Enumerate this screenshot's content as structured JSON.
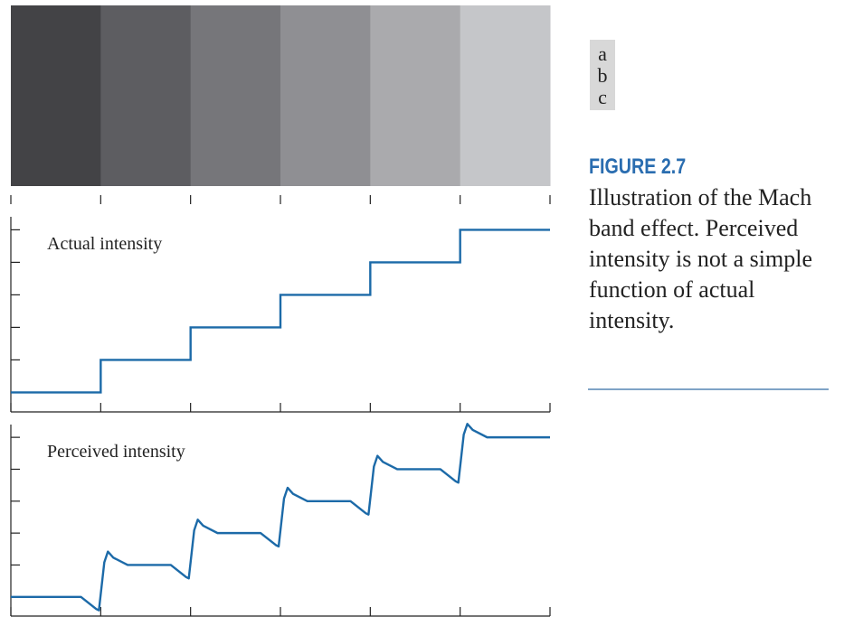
{
  "figure": {
    "panel_labels": [
      "a",
      "b",
      "c"
    ],
    "figure_number": "FIGURE 2.7",
    "caption": "Illustration of the Mach band effect. Perceived intensity is not a simple function of actual intensity."
  },
  "colors": {
    "curve": "#1c6aa8",
    "axis": "#222222",
    "caption_blue": "#2a6db0",
    "rule": "#7fa3c6",
    "bands": [
      "#434346",
      "#5d5d61",
      "#76767a",
      "#8f8f93",
      "#aaaaad",
      "#c5c6c9"
    ]
  },
  "chart_data": [
    {
      "type": "image",
      "panel": "a",
      "description_levels": [
        1,
        2,
        3,
        4,
        5,
        6
      ],
      "band_colors": [
        "#434346",
        "#5d5d61",
        "#76767a",
        "#8f8f93",
        "#aaaaad",
        "#c5c6c9"
      ]
    },
    {
      "type": "line",
      "panel": "b",
      "label": "Actual intensity",
      "x": [
        0,
        1,
        1,
        2,
        2,
        3,
        3,
        4,
        4,
        5,
        5,
        6
      ],
      "y": [
        0,
        0,
        1,
        1,
        2,
        2,
        3,
        3,
        4,
        4,
        5,
        5
      ],
      "xlim": [
        0,
        6
      ],
      "ylim": [
        -0.6,
        5.4
      ],
      "xticks": 7,
      "yticks": 6,
      "color": "#1c6aa8"
    },
    {
      "type": "line",
      "panel": "c",
      "label": "Perceived intensity",
      "steps": 6,
      "levels": [
        0,
        1,
        2,
        3,
        4,
        5
      ],
      "undershoot": 0.42,
      "overshoot": 0.42,
      "xlim": [
        0,
        6
      ],
      "ylim": [
        -0.6,
        5.4
      ],
      "xticks": 7,
      "yticks": 6,
      "color": "#1c6aa8"
    }
  ]
}
